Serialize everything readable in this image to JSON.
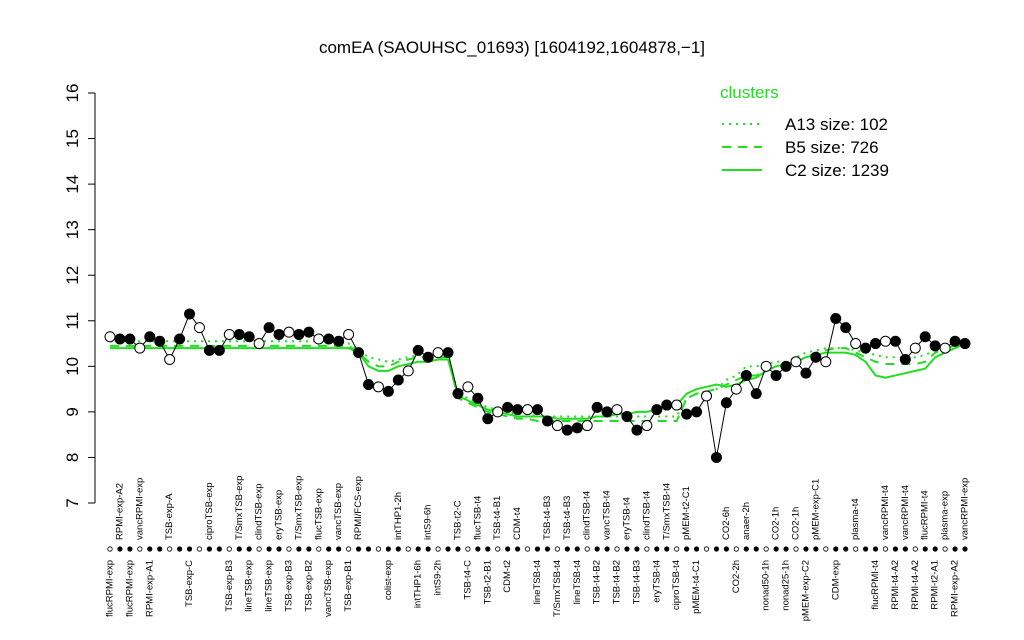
{
  "chart_data": {
    "type": "line",
    "title": "comEA (SAOUHSC_01693) [1604192,1604878,−1]",
    "categories": [
      "flucRPMI-exp",
      "RPMI-exp-A2",
      "flucRPMI-exp",
      "vancRPMI-exp",
      "RPMI-exp-A1",
      null,
      "TSB-exp-A",
      null,
      "TSB-exp-C",
      null,
      "ciproTSB-exp",
      null,
      "TSB-exp-B3",
      "T/SmxTSB-exp",
      "lineTSB-exp",
      "clindTSB-exp",
      "lineTSB-exp",
      "eryTSB-exp",
      "TSB-exp-B3",
      "T/SmxTSB-exp",
      "TSB-exp-B2",
      "flucTSB-exp",
      "vancTSB-exp",
      "vancTSB-exp",
      "TSB-exp-B1",
      "RPMI/FCS-exp",
      null,
      null,
      "colist-exp",
      "intTHP1-2h",
      null,
      "intTHP1-6h",
      "intS9-6h",
      "intS9-2h",
      null,
      "TSB-t2-C",
      "TSB-t4-C",
      "flucTSB-t4",
      "TSB-t2-B1",
      "TSB-t4-B1",
      "CDM-t2",
      "CDM-t4",
      null,
      "lineTSB-t4",
      "TSB-t4-B3",
      "T/SmxTSB-t4",
      "TSB-t4-B3",
      "lineTSB-t4",
      "clindTSB-t4",
      "TSB-t4-B2",
      "vancTSB-t4",
      "TSB-t4-B2",
      "eryTSB-t4",
      "TSB-t4-B3",
      "clindTSB-t4",
      "eryTSB-t4",
      "T/SmxTSB-t4",
      "ciproTSB-t4",
      "pMEM-t2-C1",
      "pMEM-t4-C1",
      null,
      null,
      "CO2-6h",
      "CO2-2h",
      "anaer-2h",
      null,
      "nonad50-1h",
      "CO2-1h",
      "nonad25-1h",
      "CO2-1h",
      "pMEM-exp-C2",
      "pMEM-exp-C1",
      null,
      "CDM-exp",
      null,
      "plasma-t4",
      null,
      "flucRPMI-t4",
      "vancRPMI-t4",
      "RPMI-t4-A2",
      "vancRPMI-t4",
      "RPMI-t4-A2",
      "flucRPMI-t4",
      "RPMI-t2-A1",
      "plasma-exp",
      "RPMI-exp-A2",
      "vancRPMI-exp"
    ],
    "values": [
      10.65,
      10.6,
      10.6,
      10.4,
      10.65,
      10.55,
      10.15,
      10.6,
      11.15,
      10.85,
      10.35,
      10.35,
      10.7,
      10.7,
      10.65,
      10.5,
      10.85,
      10.7,
      10.75,
      10.7,
      10.75,
      10.6,
      10.6,
      10.55,
      10.7,
      10.3,
      9.6,
      9.55,
      9.45,
      9.7,
      9.9,
      10.35,
      10.2,
      10.3,
      10.3,
      9.4,
      9.55,
      9.3,
      8.85,
      9.0,
      9.1,
      9.05,
      9.05,
      9.05,
      8.8,
      8.7,
      8.6,
      8.65,
      8.7,
      9.1,
      9.0,
      9.05,
      8.9,
      8.6,
      8.7,
      9.05,
      9.15,
      9.15,
      8.95,
      9.0,
      9.35,
      8.0,
      9.2,
      9.5,
      9.8,
      9.4,
      10.0,
      9.8,
      10.0,
      10.1,
      9.85,
      10.2,
      10.1,
      11.05,
      10.85,
      10.5,
      10.4,
      10.5,
      10.55,
      10.55,
      10.15,
      10.4,
      10.65,
      10.45,
      10.4,
      10.55,
      10.5
    ],
    "color": "#000000",
    "legend_title": "clusters",
    "legend_position": "top-right",
    "series": [
      {
        "name": "A13 size: 102",
        "color": "#22dd22",
        "dash": "dotted",
        "values": [
          10.55,
          10.55,
          10.55,
          10.55,
          10.55,
          10.55,
          10.55,
          10.55,
          10.55,
          10.55,
          10.55,
          10.55,
          10.55,
          10.55,
          10.55,
          10.55,
          10.55,
          10.55,
          10.55,
          10.55,
          10.55,
          10.55,
          10.55,
          10.55,
          10.5,
          10.35,
          10.2,
          10.15,
          10.1,
          10.15,
          10.2,
          10.25,
          10.25,
          10.25,
          10.25,
          9.4,
          9.3,
          9.2,
          9.1,
          9.05,
          9.0,
          8.95,
          8.95,
          8.9,
          8.9,
          8.9,
          8.9,
          8.9,
          8.9,
          8.9,
          8.9,
          8.9,
          8.9,
          8.9,
          8.9,
          8.9,
          8.9,
          8.9,
          9.3,
          9.4,
          9.45,
          9.5,
          9.7,
          9.8,
          10.0,
          10.0,
          10.05,
          10.1,
          10.1,
          10.2,
          10.3,
          10.35,
          10.4,
          10.4,
          10.4,
          10.35,
          10.3,
          10.25,
          10.2,
          10.2,
          10.2,
          10.2,
          10.25,
          10.35,
          10.4,
          10.45,
          10.45
        ]
      },
      {
        "name": "B5 size: 726",
        "color": "#22dd22",
        "dash": "dashed",
        "values": [
          10.45,
          10.45,
          10.45,
          10.45,
          10.45,
          10.45,
          10.45,
          10.45,
          10.45,
          10.45,
          10.45,
          10.45,
          10.45,
          10.45,
          10.45,
          10.45,
          10.45,
          10.45,
          10.45,
          10.45,
          10.45,
          10.45,
          10.45,
          10.45,
          10.45,
          10.3,
          10.1,
          10.0,
          10.0,
          10.1,
          10.15,
          10.2,
          10.2,
          10.2,
          10.2,
          9.3,
          9.2,
          9.1,
          9.0,
          8.95,
          8.9,
          8.85,
          8.85,
          8.8,
          8.8,
          8.8,
          8.8,
          8.8,
          8.8,
          8.8,
          8.8,
          8.8,
          8.8,
          8.8,
          8.8,
          8.8,
          8.8,
          8.8,
          9.3,
          9.4,
          9.45,
          9.5,
          9.6,
          9.7,
          9.8,
          9.8,
          9.9,
          10.0,
          10.0,
          10.1,
          10.2,
          10.3,
          10.35,
          10.4,
          10.4,
          10.3,
          10.2,
          10.1,
          10.05,
          10.05,
          10.05,
          10.05,
          10.1,
          10.3,
          10.4,
          10.45,
          10.45
        ]
      },
      {
        "name": "C2 size: 1239",
        "color": "#22dd22",
        "dash": "solid",
        "values": [
          10.4,
          10.4,
          10.4,
          10.4,
          10.4,
          10.4,
          10.4,
          10.4,
          10.4,
          10.4,
          10.4,
          10.4,
          10.4,
          10.4,
          10.4,
          10.4,
          10.4,
          10.4,
          10.4,
          10.4,
          10.4,
          10.4,
          10.4,
          10.4,
          10.4,
          10.3,
          10.0,
          9.9,
          9.9,
          10.0,
          10.05,
          10.1,
          10.1,
          10.15,
          10.15,
          9.35,
          9.25,
          9.15,
          9.05,
          9.0,
          8.95,
          8.9,
          8.9,
          8.9,
          8.9,
          8.85,
          8.85,
          8.85,
          8.85,
          8.9,
          8.9,
          8.95,
          8.95,
          9.0,
          9.0,
          9.05,
          9.1,
          9.15,
          9.4,
          9.5,
          9.55,
          9.6,
          9.55,
          9.6,
          9.7,
          9.75,
          9.9,
          10.0,
          10.05,
          10.1,
          10.2,
          10.25,
          10.3,
          10.3,
          10.3,
          10.25,
          10.1,
          9.8,
          9.75,
          9.8,
          9.85,
          9.9,
          9.95,
          10.2,
          10.3,
          10.4,
          10.5
        ]
      }
    ],
    "ylim": [
      7,
      16
    ],
    "yticks": [
      7,
      8,
      9,
      10,
      11,
      12,
      13,
      14,
      15,
      16
    ]
  }
}
